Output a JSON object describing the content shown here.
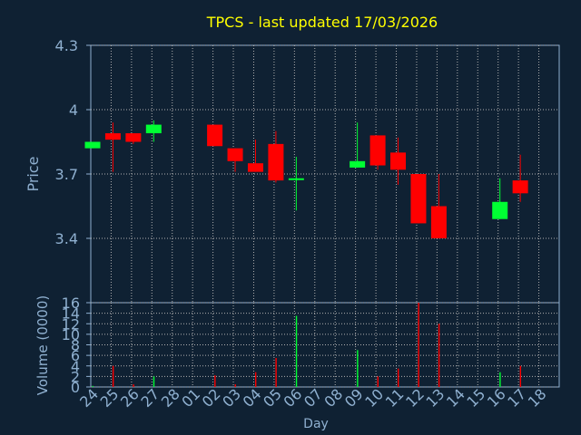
{
  "chart_data": [
    {
      "type": "candlestick",
      "title": "TPCS - last updated 17/03/2026",
      "ylabel": "Price",
      "ylim": [
        3.1,
        4.3
      ],
      "yticks": [
        3.4,
        3.7,
        4,
        4.3
      ],
      "categories": [
        "24",
        "25",
        "26",
        "27",
        "28",
        "01",
        "02",
        "03",
        "04",
        "05",
        "06",
        "07",
        "08",
        "09",
        "10",
        "11",
        "12",
        "13",
        "14",
        "15",
        "16",
        "17",
        "18"
      ],
      "candles": [
        {
          "x": "24",
          "open": 3.82,
          "high": 3.85,
          "low": 3.82,
          "close": 3.85
        },
        {
          "x": "25",
          "open": 3.89,
          "high": 3.94,
          "low": 3.71,
          "close": 3.86
        },
        {
          "x": "26",
          "open": 3.89,
          "high": 3.89,
          "low": 3.84,
          "close": 3.85
        },
        {
          "x": "27",
          "open": 3.89,
          "high": 3.95,
          "low": 3.85,
          "close": 3.93
        },
        {
          "x": "02",
          "open": 3.93,
          "high": 3.93,
          "low": 3.83,
          "close": 3.83
        },
        {
          "x": "03",
          "open": 3.82,
          "high": 3.82,
          "low": 3.71,
          "close": 3.76
        },
        {
          "x": "04",
          "open": 3.75,
          "high": 3.86,
          "low": 3.71,
          "close": 3.71
        },
        {
          "x": "05",
          "open": 3.84,
          "high": 3.9,
          "low": 3.66,
          "close": 3.67
        },
        {
          "x": "06",
          "open": 3.68,
          "high": 3.78,
          "low": 3.53,
          "close": 3.68
        },
        {
          "x": "09",
          "open": 3.73,
          "high": 3.94,
          "low": 3.73,
          "close": 3.76
        },
        {
          "x": "10",
          "open": 3.88,
          "high": 3.88,
          "low": 3.72,
          "close": 3.74
        },
        {
          "x": "11",
          "open": 3.8,
          "high": 3.87,
          "low": 3.65,
          "close": 3.72
        },
        {
          "x": "12",
          "open": 3.7,
          "high": 3.7,
          "low": 3.47,
          "close": 3.47
        },
        {
          "x": "13",
          "open": 3.55,
          "high": 3.7,
          "low": 3.4,
          "close": 3.4
        },
        {
          "x": "16",
          "open": 3.49,
          "high": 3.68,
          "low": 3.49,
          "close": 3.57
        },
        {
          "x": "17",
          "open": 3.67,
          "high": 3.79,
          "low": 3.57,
          "close": 3.61
        }
      ]
    },
    {
      "type": "bar",
      "xlabel": "Day",
      "ylabel": "Volume (0000)",
      "ylim": [
        0,
        16
      ],
      "yticks": [
        0,
        2,
        4,
        6,
        8,
        10,
        12,
        14,
        16
      ],
      "categories": [
        "24",
        "25",
        "26",
        "27",
        "28",
        "01",
        "02",
        "03",
        "04",
        "05",
        "06",
        "07",
        "08",
        "09",
        "10",
        "11",
        "12",
        "13",
        "14",
        "15",
        "16",
        "17",
        "18"
      ],
      "values": [
        0.2,
        4,
        0.5,
        2,
        0,
        0,
        2.2,
        0.5,
        2.8,
        5.5,
        13.5,
        0,
        0,
        7,
        2,
        3.5,
        16,
        12,
        0,
        0,
        2.8,
        4,
        0
      ]
    }
  ],
  "colors": {
    "background": "#0f2133",
    "axis_text": "#8fb0d0",
    "title": "#ffff00",
    "up": "#00ff33",
    "down": "#ff0000",
    "grid": "#b0b0b0"
  }
}
